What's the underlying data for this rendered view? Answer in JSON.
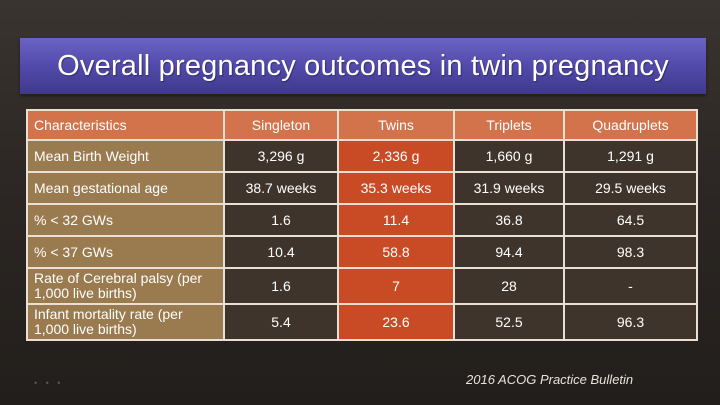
{
  "slide": {
    "title": "Overall pregnancy outcomes in twin pregnancy",
    "citation": "2016 ACOG Practice Bulletin"
  },
  "table": {
    "headers": [
      "Characteristics",
      "Singleton",
      "Twins",
      "Triplets",
      "Quadruplets"
    ],
    "rows": [
      {
        "label": "Mean Birth Weight",
        "values": [
          "3,296 g",
          "2,336 g",
          "1,660 g",
          "1,291 g"
        ]
      },
      {
        "label": "Mean gestational age",
        "values": [
          "38.7 weeks",
          "35.3 weeks",
          "31.9 weeks",
          "29.5 weeks"
        ]
      },
      {
        "label": "% < 32 GWs",
        "values": [
          "1.6",
          "11.4",
          "36.8",
          "64.5"
        ]
      },
      {
        "label": "% < 37 GWs",
        "values": [
          "10.4",
          "58.8",
          "94.4",
          "98.3"
        ]
      },
      {
        "label": "Rate of Cerebral palsy (per 1,000 live births)",
        "values": [
          "1.6",
          "7",
          "28",
          "-"
        ]
      },
      {
        "label": "Infant mortality rate (per 1,000 live births)",
        "values": [
          "5.4",
          "23.6",
          "52.5",
          "96.3"
        ]
      }
    ]
  },
  "colors": {
    "title_band": "#5048a8",
    "header_row": "#d3734c",
    "label_column": "#9a7a4f",
    "data_cell": "#3f342b",
    "twins_highlight": "#c84b26"
  }
}
